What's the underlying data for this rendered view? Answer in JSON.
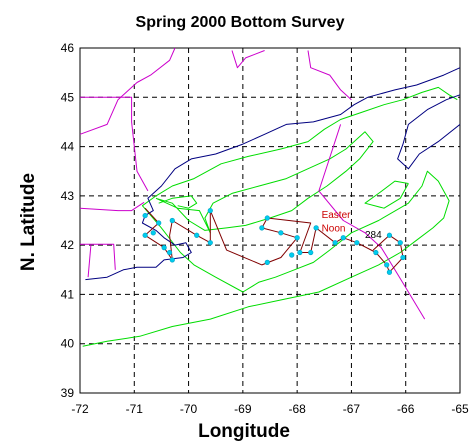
{
  "chart_data": {
    "type": "map",
    "title": "Spring 2000 Bottom Survey",
    "xlabel": "Longitude",
    "ylabel": "N. Latitude",
    "xlim": [
      -72,
      -65
    ],
    "ylim": [
      39,
      46
    ],
    "x_ticks": [
      -72,
      -71,
      -70,
      -69,
      -68,
      -67,
      -66,
      -65
    ],
    "y_ticks": [
      39,
      40,
      41,
      42,
      43,
      44,
      45,
      46
    ],
    "grid": true,
    "colors": {
      "coastline": "#000080",
      "depth_contour": "#00dd00",
      "boundary": "#cc00cc",
      "cruise_track": "#800000",
      "stations": "#00ccee",
      "annotation": "#cc0000"
    },
    "annotations": [
      {
        "text": "Easter",
        "lon": -67.55,
        "lat": 42.55
      },
      {
        "text": "Noon",
        "lon": -67.55,
        "lat": 42.28
      },
      {
        "text": "284",
        "lon": -66.75,
        "lat": 42.15
      }
    ],
    "stations": [
      {
        "lon": -70.8,
        "lat": 42.6
      },
      {
        "lon": -70.55,
        "lat": 42.45
      },
      {
        "lon": -70.65,
        "lat": 42.25
      },
      {
        "lon": -70.8,
        "lat": 42.2
      },
      {
        "lon": -70.45,
        "lat": 41.95
      },
      {
        "lon": -70.35,
        "lat": 41.85
      },
      {
        "lon": -70.3,
        "lat": 41.7
      },
      {
        "lon": -70.3,
        "lat": 42.5
      },
      {
        "lon": -69.85,
        "lat": 42.2
      },
      {
        "lon": -69.6,
        "lat": 42.05
      },
      {
        "lon": -69.6,
        "lat": 42.7
      },
      {
        "lon": -68.65,
        "lat": 42.35
      },
      {
        "lon": -68.55,
        "lat": 42.55
      },
      {
        "lon": -68.3,
        "lat": 42.25
      },
      {
        "lon": -68.0,
        "lat": 42.15
      },
      {
        "lon": -67.95,
        "lat": 41.85
      },
      {
        "lon": -67.75,
        "lat": 41.85
      },
      {
        "lon": -67.65,
        "lat": 42.35
      },
      {
        "lon": -67.3,
        "lat": 42.05
      },
      {
        "lon": -67.15,
        "lat": 42.15
      },
      {
        "lon": -66.9,
        "lat": 42.05
      },
      {
        "lon": -66.55,
        "lat": 41.85
      },
      {
        "lon": -66.35,
        "lat": 41.6
      },
      {
        "lon": -66.3,
        "lat": 41.45
      },
      {
        "lon": -66.05,
        "lat": 41.75
      },
      {
        "lon": -66.1,
        "lat": 42.05
      },
      {
        "lon": -66.3,
        "lat": 42.2
      },
      {
        "lon": -68.55,
        "lat": 41.65
      },
      {
        "lon": -68.1,
        "lat": 41.8
      }
    ],
    "cruise_track": [
      [
        -70.8,
        42.75
      ],
      [
        -70.55,
        42.45
      ],
      [
        -70.8,
        42.2
      ],
      [
        -70.45,
        41.95
      ],
      [
        -70.3,
        41.7
      ],
      [
        -70.35,
        42.2
      ],
      [
        -70.3,
        42.5
      ],
      [
        -69.85,
        42.2
      ],
      [
        -69.6,
        42.05
      ],
      [
        -69.6,
        42.7
      ],
      [
        -69.3,
        41.9
      ],
      [
        -68.65,
        41.6
      ],
      [
        -68.3,
        41.75
      ],
      [
        -68.0,
        42.15
      ],
      [
        -68.3,
        42.25
      ],
      [
        -68.65,
        42.35
      ],
      [
        -68.55,
        42.55
      ],
      [
        -67.75,
        42.45
      ],
      [
        -67.95,
        41.85
      ],
      [
        -67.75,
        41.85
      ],
      [
        -67.65,
        42.35
      ],
      [
        -67.3,
        42.05
      ],
      [
        -67.15,
        42.15
      ],
      [
        -66.9,
        42.05
      ],
      [
        -66.55,
        41.85
      ],
      [
        -66.35,
        41.6
      ],
      [
        -66.3,
        41.45
      ],
      [
        -66.05,
        41.75
      ],
      [
        -66.1,
        42.05
      ],
      [
        -66.3,
        42.2
      ],
      [
        -66.6,
        41.9
      ]
    ],
    "coastline": [
      [
        -71.9,
        41.3
      ],
      [
        -71.5,
        41.35
      ],
      [
        -71.2,
        41.5
      ],
      [
        -70.95,
        41.55
      ],
      [
        -70.7,
        41.55
      ],
      [
        -70.6,
        41.55
      ],
      [
        -70.45,
        41.7
      ],
      [
        -70.1,
        41.75
      ],
      [
        -69.95,
        41.85
      ],
      [
        -70.05,
        42.05
      ],
      [
        -70.25,
        42.0
      ],
      [
        -70.45,
        42.15
      ],
      [
        -70.6,
        42.3
      ],
      [
        -70.85,
        42.45
      ],
      [
        -70.8,
        42.6
      ],
      [
        -70.65,
        42.7
      ],
      [
        -70.75,
        42.95
      ],
      [
        -70.5,
        43.2
      ],
      [
        -70.25,
        43.55
      ],
      [
        -69.95,
        43.75
      ],
      [
        -69.5,
        43.85
      ],
      [
        -69.0,
        44.05
      ],
      [
        -68.6,
        44.25
      ],
      [
        -68.2,
        44.45
      ],
      [
        -67.7,
        44.5
      ],
      [
        -67.2,
        44.65
      ],
      [
        -66.95,
        44.85
      ],
      [
        -66.7,
        45.0
      ],
      [
        -66.2,
        45.15
      ],
      [
        -65.8,
        45.25
      ],
      [
        -65.3,
        45.45
      ],
      [
        -65.0,
        45.6
      ]
    ],
    "nova_scotia": [
      [
        -65.0,
        44.45
      ],
      [
        -65.4,
        44.1
      ],
      [
        -65.75,
        43.85
      ],
      [
        -65.95,
        43.55
      ],
      [
        -66.15,
        43.75
      ],
      [
        -66.05,
        44.05
      ],
      [
        -65.95,
        44.45
      ],
      [
        -65.6,
        44.75
      ],
      [
        -65.25,
        44.95
      ],
      [
        -65.0,
        45.05
      ]
    ],
    "contour_outer": [
      [
        -71.95,
        39.95
      ],
      [
        -71.5,
        40.05
      ],
      [
        -70.9,
        40.15
      ],
      [
        -70.3,
        40.35
      ],
      [
        -69.6,
        40.5
      ],
      [
        -68.9,
        40.75
      ],
      [
        -68.25,
        40.9
      ],
      [
        -67.6,
        41.05
      ],
      [
        -67.0,
        41.35
      ],
      [
        -66.5,
        41.6
      ],
      [
        -66.1,
        41.85
      ],
      [
        -65.8,
        42.1
      ],
      [
        -65.5,
        42.35
      ],
      [
        -65.3,
        42.55
      ],
      [
        -65.2,
        42.9
      ],
      [
        -65.4,
        43.3
      ],
      [
        -65.6,
        43.5
      ],
      [
        -65.7,
        43.2
      ],
      [
        -65.95,
        42.85
      ],
      [
        -66.5,
        42.5
      ],
      [
        -67.0,
        42.25
      ],
      [
        -67.4,
        41.9
      ],
      [
        -67.7,
        41.65
      ],
      [
        -68.05,
        41.5
      ],
      [
        -68.4,
        41.35
      ],
      [
        -68.7,
        41.25
      ],
      [
        -69.0,
        41.05
      ],
      [
        -69.5,
        41.35
      ],
      [
        -69.9,
        41.6
      ],
      [
        -70.15,
        41.85
      ],
      [
        -70.5,
        42.35
      ],
      [
        -70.85,
        42.8
      ],
      [
        -70.6,
        43.0
      ],
      [
        -70.3,
        43.2
      ],
      [
        -69.9,
        43.35
      ],
      [
        -69.4,
        43.65
      ],
      [
        -68.9,
        43.8
      ],
      [
        -68.3,
        43.95
      ],
      [
        -67.8,
        44.1
      ],
      [
        -67.5,
        44.35
      ],
      [
        -67.2,
        44.55
      ],
      [
        -66.8,
        44.7
      ],
      [
        -66.4,
        44.85
      ],
      [
        -66.05,
        44.95
      ],
      [
        -65.7,
        45.1
      ],
      [
        -65.4,
        45.2
      ],
      [
        -65.2,
        45.05
      ],
      [
        -65.05,
        44.95
      ]
    ],
    "contour_basin": [
      [
        -70.6,
        42.95
      ],
      [
        -70.2,
        42.75
      ],
      [
        -69.8,
        42.7
      ],
      [
        -69.6,
        42.25
      ],
      [
        -69.7,
        42.55
      ],
      [
        -69.55,
        42.85
      ],
      [
        -69.2,
        43.05
      ],
      [
        -68.7,
        43.2
      ],
      [
        -68.2,
        43.35
      ],
      [
        -67.9,
        43.5
      ],
      [
        -67.4,
        43.75
      ],
      [
        -67.1,
        43.95
      ],
      [
        -66.75,
        44.3
      ],
      [
        -66.6,
        44.1
      ],
      [
        -66.85,
        43.75
      ],
      [
        -67.1,
        43.5
      ],
      [
        -67.45,
        43.2
      ],
      [
        -67.8,
        42.95
      ],
      [
        -68.1,
        42.7
      ],
      [
        -68.5,
        42.55
      ],
      [
        -68.95,
        42.4
      ],
      [
        -69.3,
        42.35
      ],
      [
        -69.7,
        42.3
      ],
      [
        -70.0,
        42.5
      ],
      [
        -70.3,
        42.85
      ],
      [
        -70.6,
        42.95
      ]
    ],
    "contour_ns": [
      [
        -65.95,
        43.25
      ],
      [
        -66.1,
        42.95
      ],
      [
        -66.4,
        42.75
      ],
      [
        -66.75,
        42.85
      ],
      [
        -66.5,
        43.05
      ],
      [
        -66.2,
        43.3
      ],
      [
        -65.95,
        43.25
      ]
    ],
    "contour_cape": [
      [
        -70.55,
        42.85
      ],
      [
        -70.3,
        42.95
      ],
      [
        -69.95,
        43.0
      ],
      [
        -69.85,
        42.85
      ],
      [
        -70.0,
        42.75
      ],
      [
        -70.2,
        42.8
      ]
    ],
    "boundary_state": [
      [
        -72.0,
        42.02
      ],
      [
        -71.8,
        42.02
      ],
      [
        -71.38,
        42.02
      ],
      [
        -71.35,
        41.5
      ]
    ],
    "boundary_ri": [
      [
        -71.85,
        41.35
      ],
      [
        -71.8,
        42.0
      ]
    ],
    "boundary_nh": [
      [
        -70.82,
        42.87
      ],
      [
        -71.05,
        42.7
      ],
      [
        -71.3,
        42.7
      ],
      [
        -72.0,
        42.75
      ]
    ],
    "boundary_maine": [
      [
        -72.0,
        45.0
      ],
      [
        -71.05,
        45.0
      ],
      [
        -71.05,
        44.5
      ],
      [
        -70.95,
        43.5
      ],
      [
        -70.75,
        43.1
      ]
    ],
    "boundary_canada": [
      [
        -72.0,
        44.25
      ],
      [
        -71.5,
        44.45
      ],
      [
        -71.3,
        44.95
      ],
      [
        -70.95,
        45.3
      ],
      [
        -70.7,
        45.45
      ],
      [
        -70.35,
        45.75
      ],
      [
        -70.25,
        46.0
      ]
    ],
    "boundary_canada2": [
      [
        -69.2,
        45.95
      ],
      [
        -69.1,
        45.6
      ],
      [
        -68.95,
        45.8
      ],
      [
        -68.6,
        45.95
      ]
    ],
    "boundary_nb": [
      [
        -67.8,
        45.95
      ],
      [
        -67.75,
        45.6
      ],
      [
        -67.4,
        45.45
      ],
      [
        -67.2,
        45.15
      ],
      [
        -67.0,
        44.95
      ]
    ],
    "hague_line": [
      [
        -67.2,
        44.45
      ],
      [
        -67.6,
        43.1
      ],
      [
        -67.15,
        42.5
      ],
      [
        -66.75,
        42.25
      ],
      [
        -66.45,
        41.95
      ],
      [
        -66.2,
        41.5
      ],
      [
        -65.95,
        41.05
      ],
      [
        -65.65,
        40.5
      ]
    ]
  }
}
